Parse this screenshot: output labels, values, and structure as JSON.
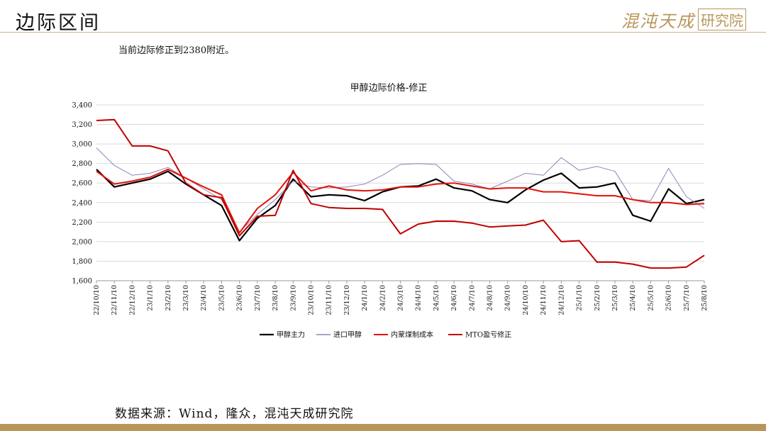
{
  "header": {
    "title": "边际区间",
    "logo_text": "混沌天成",
    "logo_box_text": "研究院"
  },
  "subtitle": "当前边际修正到2380附近。",
  "source": "数据来源：Wind，隆众，混沌天成研究院",
  "colors": {
    "accent": "#b8965a",
    "series_black": "#000000",
    "series_purple": "#8b85b8",
    "series_red": "#e3120b",
    "series_darkred": "#c00000"
  },
  "chart_data": {
    "type": "line",
    "title": "甲醇边际价格-修正",
    "xlabel": "",
    "ylabel": "",
    "ylim": [
      1600,
      3400
    ],
    "yticks": [
      "1,600",
      "1,800",
      "2,000",
      "2,200",
      "2,400",
      "2,600",
      "2,800",
      "3,000",
      "3,200",
      "3,400"
    ],
    "grid": true,
    "legend": "bottom",
    "x": [
      "22/10/10",
      "22/11/10",
      "22/12/10",
      "23/1/10",
      "23/2/10",
      "23/3/10",
      "23/4/10",
      "23/5/10",
      "23/6/10",
      "23/7/10",
      "23/8/10",
      "23/9/10",
      "23/10/10",
      "23/11/10",
      "23/12/10",
      "24/1/10",
      "24/2/10",
      "24/3/10",
      "24/4/10",
      "24/5/10",
      "24/6/10",
      "24/7/10",
      "24/8/10",
      "24/9/10",
      "24/10/10",
      "24/11/10",
      "24/12/10",
      "25/1/10",
      "25/2/10",
      "25/3/10",
      "25/4/10",
      "25/5/10",
      "25/6/10",
      "25/7/10",
      "25/8/10"
    ],
    "series": [
      {
        "name": "甲醇主力",
        "color": "#000000",
        "width": 2.2,
        "values": [
          2740,
          2560,
          2600,
          2640,
          2720,
          2590,
          2480,
          2370,
          2010,
          2240,
          2370,
          2640,
          2460,
          2480,
          2470,
          2420,
          2510,
          2560,
          2570,
          2640,
          2550,
          2520,
          2430,
          2400,
          2530,
          2630,
          2700,
          2550,
          2560,
          2600,
          2270,
          2210,
          2540,
          2390,
          2430
        ]
      },
      {
        "name": "进口甲醇",
        "color": "#8b85b8",
        "width": 1,
        "values": [
          2960,
          2780,
          2680,
          2700,
          2760,
          2650,
          2540,
          2430,
          2100,
          2280,
          2430,
          2620,
          2560,
          2550,
          2560,
          2590,
          2680,
          2790,
          2800,
          2790,
          2620,
          2590,
          2540,
          2620,
          2700,
          2680,
          2860,
          2730,
          2770,
          2720,
          2430,
          2420,
          2750,
          2460,
          2340
        ]
      },
      {
        "name": "内蒙煤制成本",
        "color": "#e3120b",
        "width": 2,
        "values": [
          2720,
          2590,
          2620,
          2660,
          2740,
          2650,
          2560,
          2480,
          2090,
          2340,
          2480,
          2710,
          2520,
          2570,
          2530,
          2520,
          2530,
          2560,
          2560,
          2590,
          2600,
          2570,
          2540,
          2550,
          2550,
          2510,
          2510,
          2490,
          2470,
          2470,
          2430,
          2400,
          2400,
          2380,
          2390
        ]
      },
      {
        "name": "MTO盈亏修正",
        "color": "#c00000",
        "width": 2,
        "values": [
          3240,
          3250,
          2980,
          2980,
          2930,
          2600,
          2480,
          2450,
          2060,
          2260,
          2270,
          2730,
          2390,
          2350,
          2340,
          2340,
          2330,
          2080,
          2180,
          2210,
          2210,
          2190,
          2150,
          2160,
          2170,
          2220,
          2000,
          2010,
          1790,
          1790,
          1770,
          1730,
          1730,
          1740,
          1860
        ]
      }
    ]
  }
}
